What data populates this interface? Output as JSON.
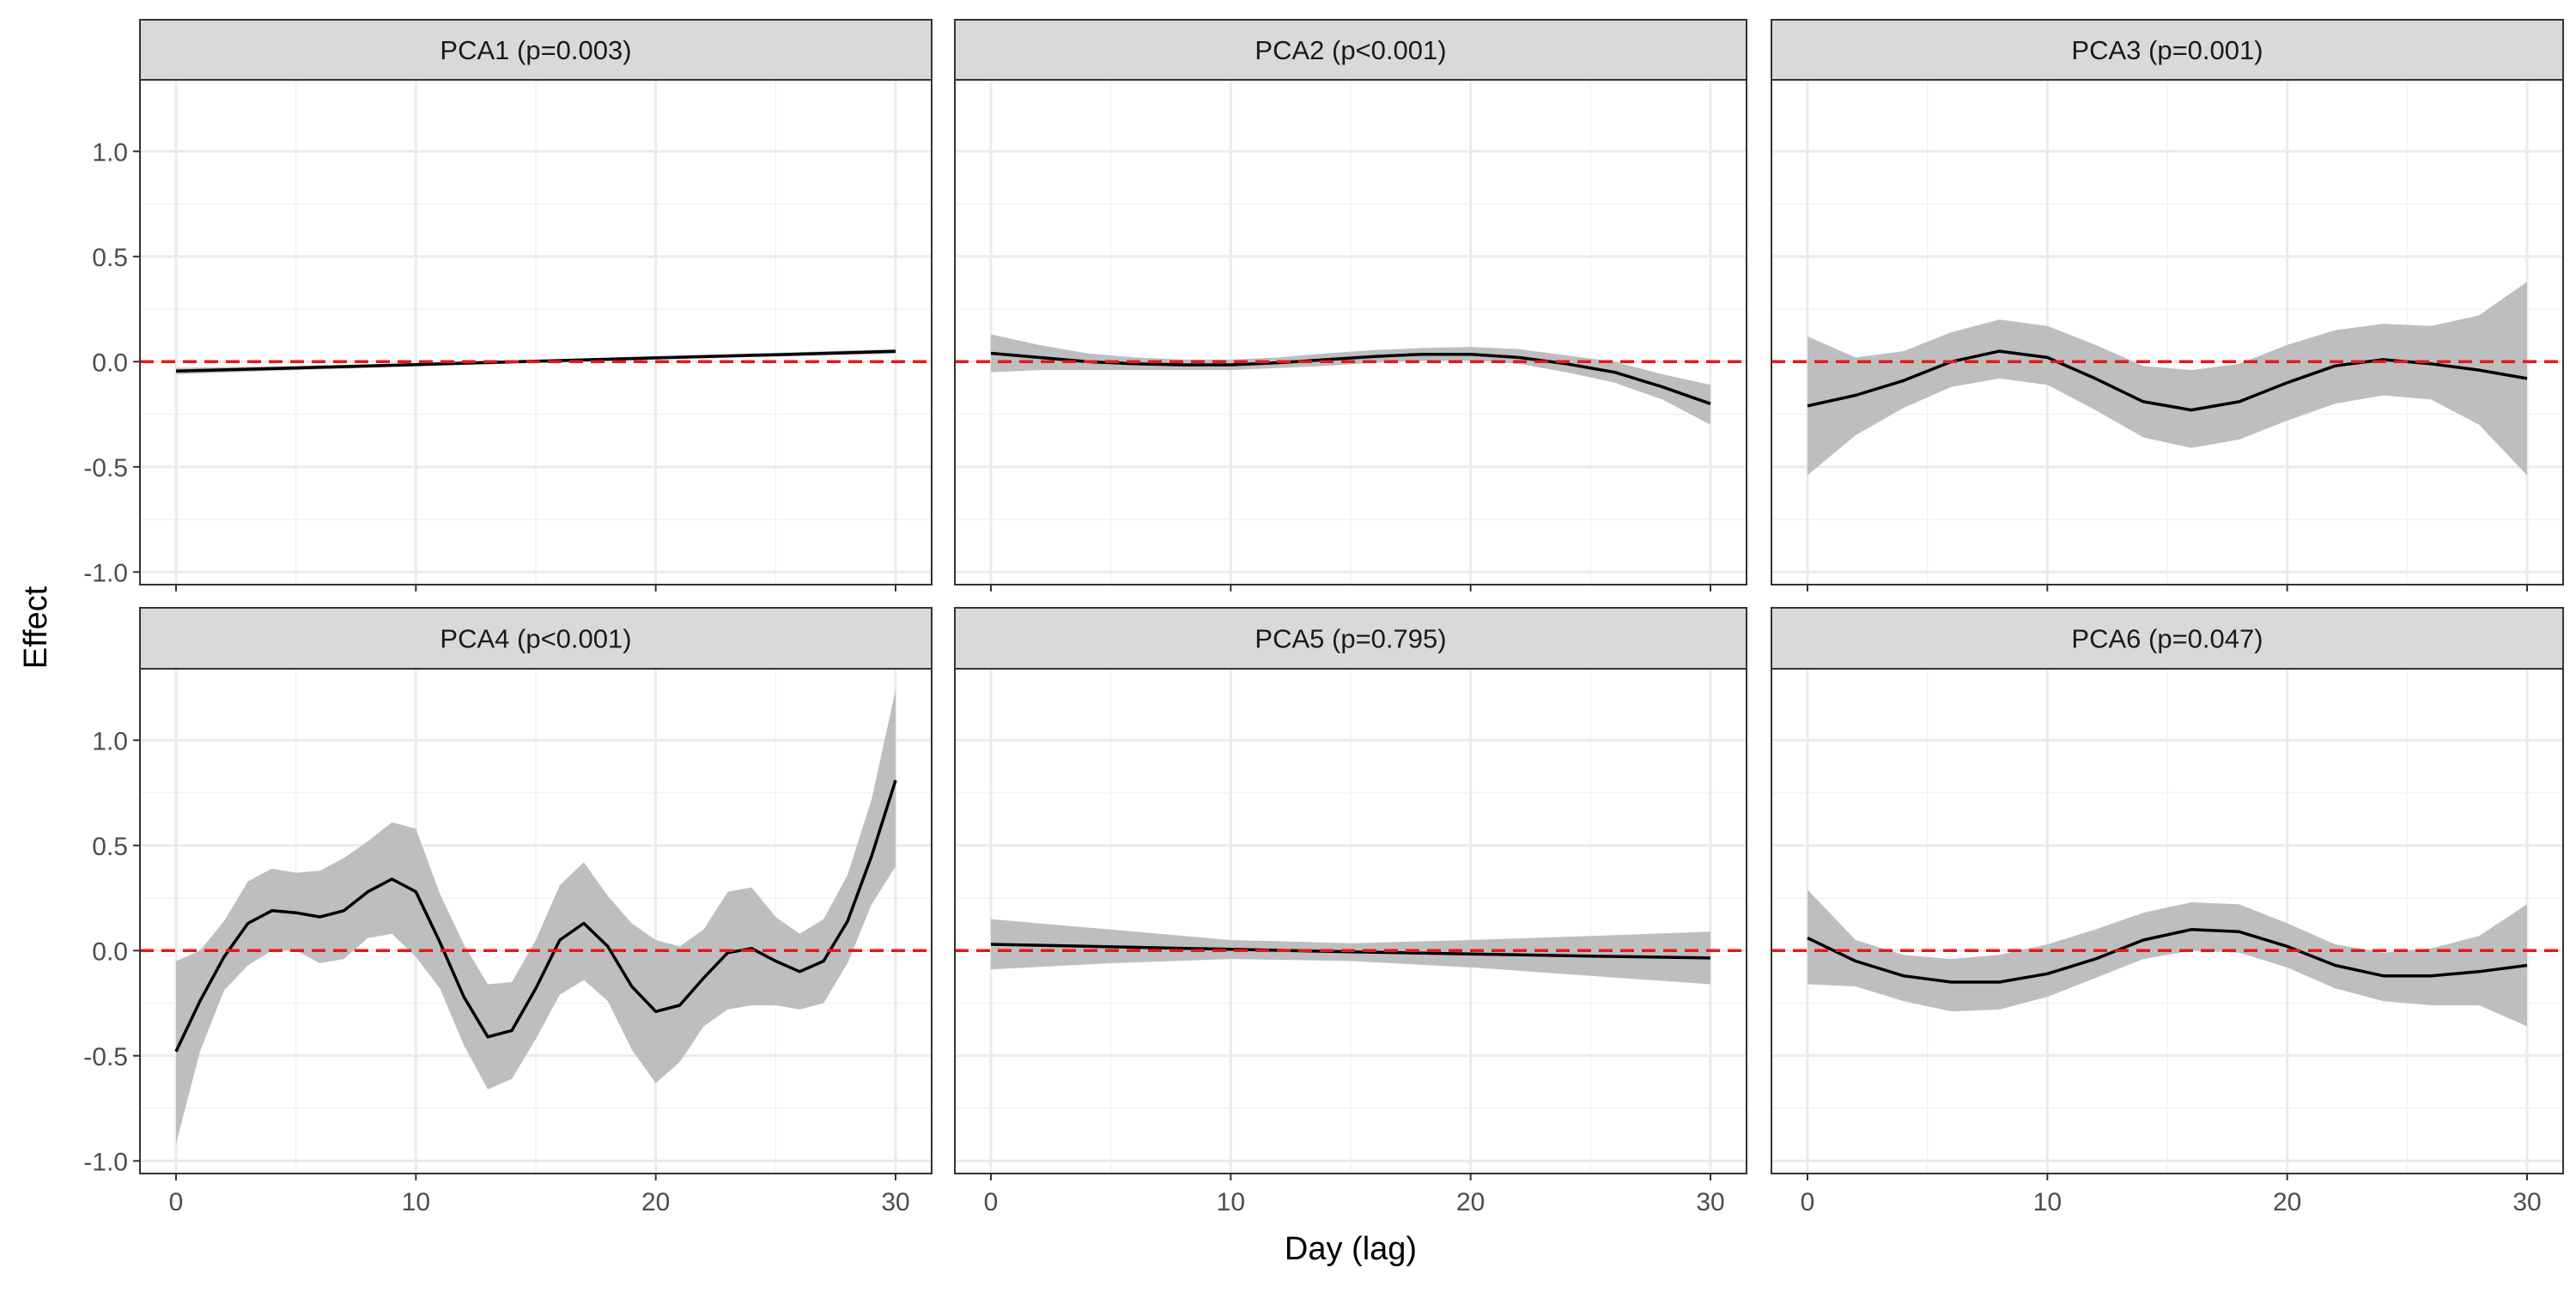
{
  "chart_data": {
    "type": "line",
    "facet_layout": "2 rows x 3 columns, shared axes",
    "xlabel": "Day (lag)",
    "ylabel": "Effect",
    "xlim": [
      0,
      30
    ],
    "ylim": [
      -1.0,
      1.3
    ],
    "x_ticks": [
      0,
      10,
      20,
      30
    ],
    "y_ticks": [
      -1.0,
      -0.5,
      0.0,
      0.5,
      1.0
    ],
    "y_tick_labels": [
      "-1.0",
      "-0.5",
      "0.0",
      "0.5",
      "1.0"
    ],
    "x_tick_labels": [
      "0",
      "10",
      "20",
      "30"
    ],
    "reference_line": {
      "y": 0.0,
      "style": "dashed",
      "color": "#e41a1c"
    },
    "grid": true,
    "line_color": "#000000",
    "band_color": "#bebebe",
    "strip_color": "#d9d9d9",
    "panels": [
      {
        "title": "PCA1 (p=0.003)",
        "x": [
          0,
          5,
          10,
          15,
          20,
          25,
          30
        ],
        "y": [
          -0.045,
          -0.03,
          -0.014,
          0.002,
          0.018,
          0.033,
          0.049
        ],
        "lower": [
          -0.06,
          -0.04,
          -0.022,
          -0.006,
          0.01,
          0.024,
          0.038
        ],
        "upper": [
          -0.03,
          -0.02,
          -0.006,
          0.01,
          0.026,
          0.042,
          0.06
        ]
      },
      {
        "title": "PCA2 (p<0.001)",
        "x": [
          0,
          2,
          4,
          6,
          8,
          10,
          12,
          14,
          16,
          18,
          20,
          22,
          24,
          26,
          28,
          30
        ],
        "y": [
          0.04,
          0.02,
          0.0,
          -0.01,
          -0.015,
          -0.015,
          -0.005,
          0.01,
          0.025,
          0.035,
          0.035,
          0.02,
          -0.01,
          -0.05,
          -0.12,
          -0.2
        ],
        "lower": [
          -0.05,
          -0.04,
          -0.04,
          -0.04,
          -0.04,
          -0.04,
          -0.03,
          -0.02,
          -0.005,
          0.005,
          0.005,
          -0.01,
          -0.05,
          -0.1,
          -0.18,
          -0.3
        ],
        "upper": [
          0.13,
          0.08,
          0.04,
          0.02,
          0.01,
          0.01,
          0.02,
          0.04,
          0.055,
          0.065,
          0.07,
          0.06,
          0.03,
          0.0,
          -0.06,
          -0.11
        ]
      },
      {
        "title": "PCA3 (p=0.001)",
        "x": [
          0,
          2,
          4,
          6,
          8,
          10,
          12,
          14,
          16,
          18,
          20,
          22,
          24,
          26,
          28,
          30
        ],
        "y": [
          -0.21,
          -0.16,
          -0.09,
          0.0,
          0.05,
          0.02,
          -0.08,
          -0.19,
          -0.23,
          -0.19,
          -0.1,
          -0.02,
          0.01,
          -0.01,
          -0.04,
          -0.08
        ],
        "lower": [
          -0.54,
          -0.35,
          -0.22,
          -0.12,
          -0.08,
          -0.11,
          -0.23,
          -0.36,
          -0.41,
          -0.37,
          -0.28,
          -0.2,
          -0.16,
          -0.18,
          -0.3,
          -0.54
        ],
        "upper": [
          0.12,
          0.02,
          0.05,
          0.14,
          0.2,
          0.17,
          0.08,
          -0.02,
          -0.04,
          -0.01,
          0.08,
          0.15,
          0.18,
          0.17,
          0.22,
          0.38
        ]
      },
      {
        "title": "PCA4 (p<0.001)",
        "x": [
          0,
          1,
          2,
          3,
          4,
          5,
          6,
          7,
          8,
          9,
          10,
          11,
          12,
          13,
          14,
          15,
          16,
          17,
          18,
          19,
          20,
          21,
          22,
          23,
          24,
          25,
          26,
          27,
          28,
          29,
          30
        ],
        "y": [
          -0.48,
          -0.24,
          -0.03,
          0.13,
          0.19,
          0.18,
          0.16,
          0.19,
          0.28,
          0.34,
          0.28,
          0.04,
          -0.22,
          -0.41,
          -0.38,
          -0.18,
          0.05,
          0.13,
          0.02,
          -0.17,
          -0.29,
          -0.26,
          -0.13,
          -0.01,
          0.01,
          -0.05,
          -0.1,
          -0.05,
          0.14,
          0.45,
          0.81
        ],
        "lower": [
          -0.92,
          -0.48,
          -0.19,
          -0.07,
          0.0,
          0.0,
          -0.06,
          -0.04,
          0.06,
          0.08,
          -0.03,
          -0.18,
          -0.45,
          -0.66,
          -0.61,
          -0.42,
          -0.21,
          -0.14,
          -0.24,
          -0.47,
          -0.63,
          -0.53,
          -0.36,
          -0.28,
          -0.26,
          -0.26,
          -0.28,
          -0.25,
          -0.06,
          0.22,
          0.4
        ],
        "upper": [
          -0.05,
          0.0,
          0.14,
          0.33,
          0.39,
          0.37,
          0.38,
          0.44,
          0.52,
          0.61,
          0.58,
          0.27,
          0.03,
          -0.16,
          -0.15,
          0.05,
          0.31,
          0.42,
          0.26,
          0.13,
          0.05,
          0.02,
          0.1,
          0.28,
          0.3,
          0.16,
          0.08,
          0.15,
          0.36,
          0.72,
          1.24
        ]
      },
      {
        "title": "PCA5 (p=0.795)",
        "x": [
          0,
          5,
          10,
          15,
          20,
          25,
          30
        ],
        "y": [
          0.03,
          0.018,
          0.006,
          -0.006,
          -0.016,
          -0.026,
          -0.035
        ],
        "lower": [
          -0.09,
          -0.06,
          -0.04,
          -0.05,
          -0.08,
          -0.12,
          -0.16
        ],
        "upper": [
          0.15,
          0.1,
          0.05,
          0.035,
          0.05,
          0.07,
          0.09
        ]
      },
      {
        "title": "PCA6 (p=0.047)",
        "x": [
          0,
          2,
          4,
          6,
          8,
          10,
          12,
          14,
          16,
          18,
          20,
          22,
          24,
          26,
          28,
          30
        ],
        "y": [
          0.06,
          -0.05,
          -0.12,
          -0.15,
          -0.15,
          -0.11,
          -0.04,
          0.05,
          0.1,
          0.09,
          0.02,
          -0.07,
          -0.12,
          -0.12,
          -0.1,
          -0.07
        ],
        "lower": [
          -0.16,
          -0.17,
          -0.24,
          -0.29,
          -0.28,
          -0.22,
          -0.13,
          -0.04,
          0.0,
          -0.01,
          -0.08,
          -0.18,
          -0.24,
          -0.26,
          -0.26,
          -0.36
        ],
        "upper": [
          0.29,
          0.05,
          -0.02,
          -0.04,
          -0.02,
          0.03,
          0.1,
          0.18,
          0.23,
          0.22,
          0.13,
          0.03,
          -0.01,
          0.01,
          0.07,
          0.22
        ]
      }
    ]
  }
}
